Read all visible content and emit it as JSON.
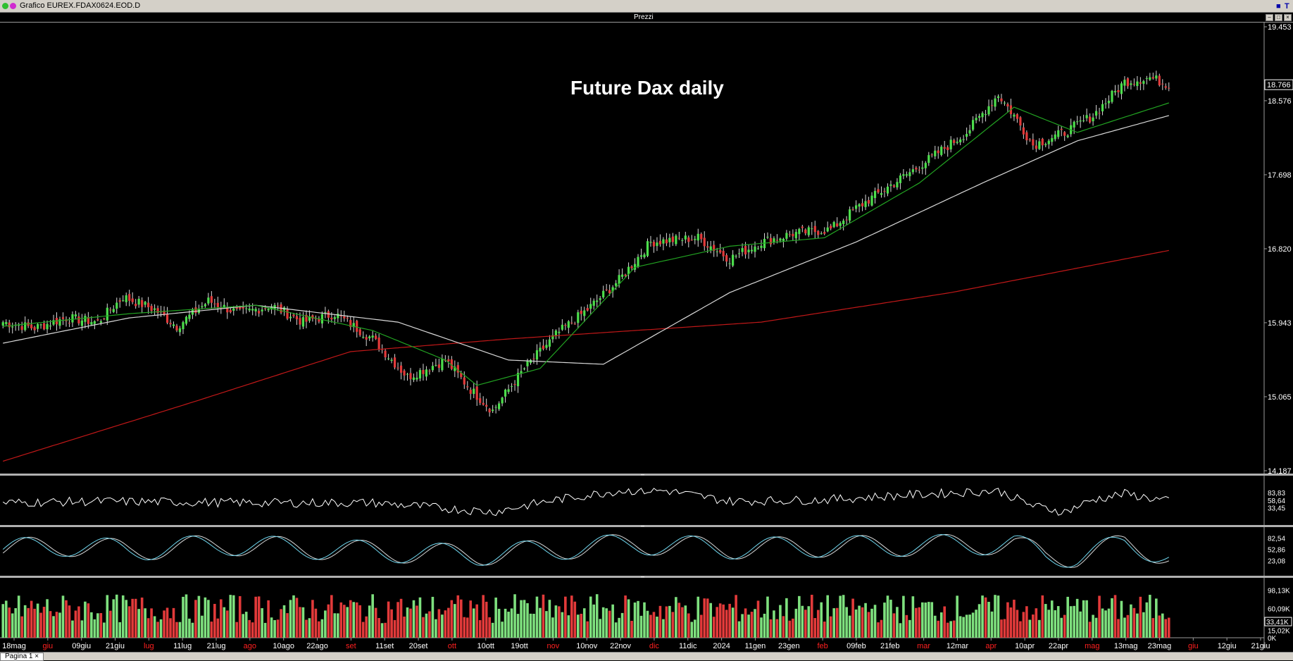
{
  "window": {
    "title": "Grafico EUREX.FDAX0624.EOD.D",
    "price_pane_label": "Prezzi",
    "page_tab": "Pagina 1",
    "pane_controls": [
      "–",
      "□",
      "×"
    ]
  },
  "colors": {
    "background": "#000000",
    "up_candle": "#4cde4c",
    "down_candle": "#e23a3a",
    "ma_fast": "#22a322",
    "ma_mid": "#d8d8d8",
    "ma_slow": "#c01818",
    "oscillator": "#ffffff",
    "stoch_k": "#6fd6ee",
    "stoch_d": "#d8d8d8",
    "volume_up": "#7ee07e",
    "volume_down": "#e23a3a"
  },
  "chart_data": {
    "type": "candlestick",
    "annotation": "Future Dax daily",
    "price_axis_ticks": [
      "19.453",
      "18.576",
      "17.698",
      "16.820",
      "15.943",
      "15.065",
      "14.187"
    ],
    "price_axis_values": [
      19453,
      18576,
      17698,
      16820,
      15943,
      15065,
      14187
    ],
    "last_price_label": "18.766",
    "last_price": 18766,
    "ylim": [
      14187,
      19453
    ],
    "x_ticks": [
      "18mag",
      "giu",
      "09giu",
      "21giu",
      "lug",
      "11lug",
      "21lug",
      "ago",
      "10ago",
      "22ago",
      "set",
      "11set",
      "20set",
      "ott",
      "10ott",
      "19ott",
      "nov",
      "10nov",
      "22nov",
      "dic",
      "11dic",
      "2024",
      "11gen",
      "23gen",
      "feb",
      "09feb",
      "21feb",
      "mar",
      "12mar",
      "apr",
      "10apr",
      "22apr",
      "mag",
      "13mag",
      "23mag",
      "giu",
      "12giu",
      "21giu"
    ],
    "x_tick_colors": [
      "#ffffff",
      "#ff2020",
      "#ffffff",
      "#ffffff",
      "#ff2020",
      "#ffffff",
      "#ffffff",
      "#ff2020",
      "#ffffff",
      "#ffffff",
      "#ff2020",
      "#ffffff",
      "#ffffff",
      "#ff2020",
      "#ffffff",
      "#ffffff",
      "#ff2020",
      "#ffffff",
      "#ffffff",
      "#ff2020",
      "#ffffff",
      "#ffffff",
      "#ffffff",
      "#ffffff",
      "#ff2020",
      "#ffffff",
      "#ffffff",
      "#ff2020",
      "#ffffff",
      "#ff2020",
      "#ffffff",
      "#ffffff",
      "#ff2020",
      "#ffffff",
      "#ffffff",
      "#ff2020",
      "#ffffff",
      "#ffffff"
    ],
    "close_anchors": [
      [
        0,
        15950
      ],
      [
        10,
        15880
      ],
      [
        20,
        16000
      ],
      [
        30,
        15950
      ],
      [
        38,
        16250
      ],
      [
        48,
        16100
      ],
      [
        55,
        15900
      ],
      [
        65,
        16200
      ],
      [
        75,
        16050
      ],
      [
        85,
        16150
      ],
      [
        95,
        15950
      ],
      [
        105,
        16050
      ],
      [
        117,
        15750
      ],
      [
        128,
        15300
      ],
      [
        140,
        15500
      ],
      [
        148,
        15150
      ],
      [
        155,
        14900
      ],
      [
        165,
        15400
      ],
      [
        175,
        15800
      ],
      [
        185,
        16100
      ],
      [
        195,
        16450
      ],
      [
        205,
        16900
      ],
      [
        220,
        16950
      ],
      [
        230,
        16700
      ],
      [
        240,
        16900
      ],
      [
        250,
        17000
      ],
      [
        262,
        17050
      ],
      [
        270,
        17300
      ],
      [
        290,
        17800
      ],
      [
        305,
        18200
      ],
      [
        315,
        18650
      ],
      [
        320,
        18400
      ],
      [
        326,
        18050
      ],
      [
        336,
        18200
      ],
      [
        345,
        18400
      ],
      [
        355,
        18800
      ],
      [
        363,
        18850
      ],
      [
        369,
        18766
      ]
    ],
    "ma_fast_anchors": [
      [
        0,
        15900
      ],
      [
        40,
        16050
      ],
      [
        80,
        16150
      ],
      [
        117,
        15850
      ],
      [
        140,
        15500
      ],
      [
        150,
        15200
      ],
      [
        170,
        15400
      ],
      [
        200,
        16600
      ],
      [
        230,
        16850
      ],
      [
        260,
        16950
      ],
      [
        290,
        17600
      ],
      [
        320,
        18500
      ],
      [
        340,
        18200
      ],
      [
        369,
        18550
      ]
    ],
    "ma_mid_anchors": [
      [
        0,
        15700
      ],
      [
        40,
        16000
      ],
      [
        80,
        16150
      ],
      [
        125,
        15950
      ],
      [
        160,
        15500
      ],
      [
        190,
        15450
      ],
      [
        230,
        16300
      ],
      [
        270,
        16900
      ],
      [
        310,
        17600
      ],
      [
        340,
        18100
      ],
      [
        369,
        18400
      ]
    ],
    "ma_slow_anchors": [
      [
        0,
        14300
      ],
      [
        60,
        15000
      ],
      [
        110,
        15600
      ],
      [
        160,
        15750
      ],
      [
        240,
        15950
      ],
      [
        300,
        16300
      ],
      [
        369,
        16800
      ]
    ],
    "oscillator_ticks": [
      "83,83",
      "58,64",
      "33,45"
    ],
    "oscillator_values": [
      83.83,
      58.64,
      33.45
    ],
    "oscillator_anchors": [
      [
        0,
        50
      ],
      [
        30,
        55
      ],
      [
        80,
        50
      ],
      [
        117,
        50
      ],
      [
        155,
        20
      ],
      [
        175,
        60
      ],
      [
        195,
        90
      ],
      [
        210,
        90
      ],
      [
        230,
        55
      ],
      [
        260,
        60
      ],
      [
        285,
        75
      ],
      [
        315,
        90
      ],
      [
        326,
        40
      ],
      [
        336,
        20
      ],
      [
        345,
        60
      ],
      [
        355,
        80
      ],
      [
        369,
        55
      ]
    ],
    "stoch_ticks": [
      "82,54",
      "52,86",
      "23,08"
    ],
    "stoch_values": [
      82.54,
      52.86,
      23.08
    ],
    "stoch_anchors": [
      [
        0,
        55
      ],
      [
        20,
        75
      ],
      [
        40,
        50
      ],
      [
        70,
        80
      ],
      [
        117,
        45
      ],
      [
        150,
        25
      ],
      [
        175,
        55
      ],
      [
        200,
        85
      ],
      [
        230,
        60
      ],
      [
        260,
        70
      ],
      [
        290,
        75
      ],
      [
        320,
        85
      ],
      [
        330,
        20
      ],
      [
        340,
        15
      ],
      [
        355,
        85
      ],
      [
        369,
        20
      ]
    ],
    "volume_ticks": [
      "98,13K",
      "60,09K",
      "33,41K",
      "15,02K",
      "0K"
    ],
    "volume_values": [
      98130,
      60090,
      33410,
      15020,
      0
    ],
    "volume_ylim": [
      0,
      115000
    ],
    "volume_last_label": "33,41K",
    "volume_last": 33410
  }
}
